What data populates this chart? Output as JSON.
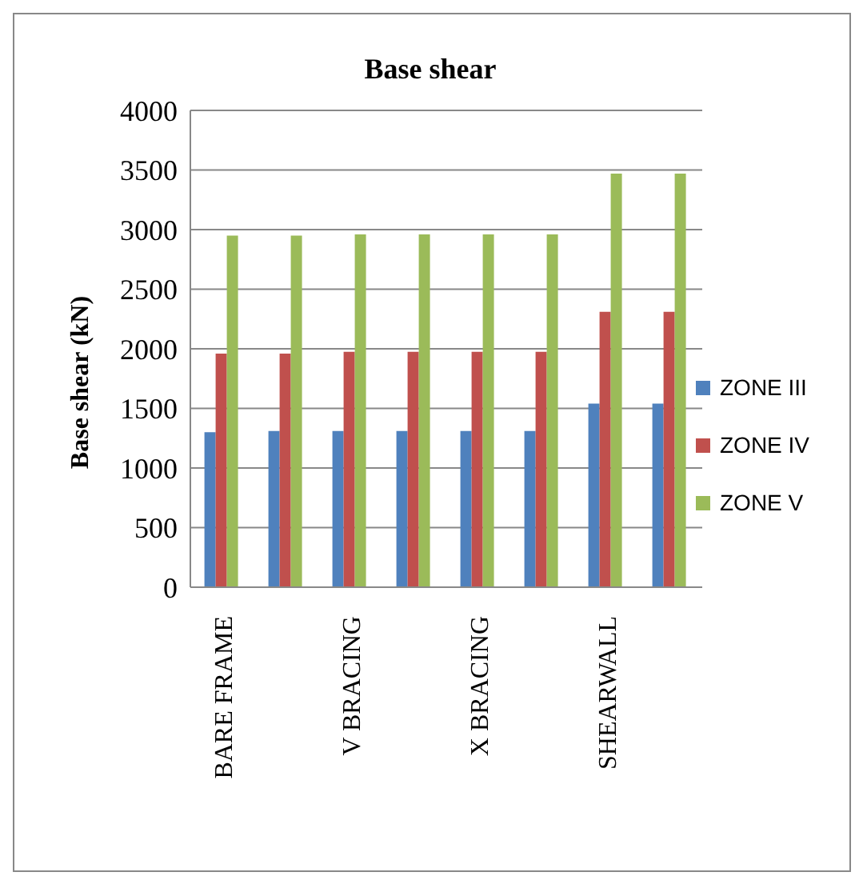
{
  "chart_data": {
    "type": "bar",
    "title": "Base shear",
    "ylabel": "Base shear (kN)",
    "categories": [
      "BARE FRAME",
      null,
      "V BRACING",
      null,
      "X BRACING",
      null,
      "SHEARWALL",
      null
    ],
    "series": [
      {
        "name": "ZONE III",
        "color": "#4f81bd",
        "values": [
          1300,
          1310,
          1310,
          1310,
          1310,
          1310,
          1540,
          1540
        ]
      },
      {
        "name": "ZONE IV",
        "color": "#c0504d",
        "values": [
          1960,
          1960,
          1975,
          1975,
          1975,
          1975,
          2310,
          2310
        ]
      },
      {
        "name": "ZONE V",
        "color": "#9bbb59",
        "values": [
          2950,
          2950,
          2960,
          2960,
          2960,
          2960,
          3470,
          3470
        ]
      }
    ],
    "ylim": [
      0,
      4000
    ],
    "yticks": [
      0,
      500,
      1000,
      1500,
      2000,
      2500,
      3000,
      3500,
      4000
    ],
    "grid": "y",
    "legend": "right"
  }
}
